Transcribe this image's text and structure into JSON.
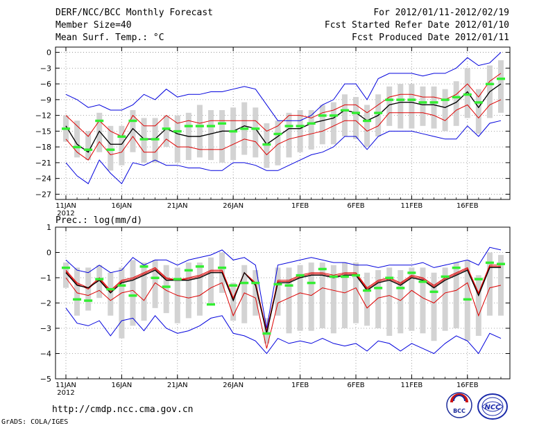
{
  "header": {
    "title": "DERF/NCC/BCC Monthly Forecast",
    "member_size": "Member Size=40",
    "variable": "Mean Surf. Temp.: °C",
    "period": "For 2012/01/11-2012/02/19",
    "fcst_started": "Fcst Started Refer Date 2012/01/10",
    "fcst_produced": "Fcst Produced Date 2012/01/11"
  },
  "footer": {
    "url": "http://cmdp.ncc.cma.gov.cn",
    "grads_credit": "GrADS: COLA/IGES",
    "logo_bcc_text": "BCC",
    "logo_ncc_text": "NCC"
  },
  "colors": {
    "envelope": "#0000dd",
    "spread": "#dd0000",
    "mean": "#000000",
    "bar": "#d3d3d3",
    "marker": "#33ee33"
  },
  "chart_data": [
    {
      "type": "line",
      "name": "temperature",
      "title": "Mean Surf. Temp.: °C",
      "ylim": [
        -28,
        1
      ],
      "yticks": [
        0,
        -3,
        -6,
        -9,
        -12,
        -15,
        -18,
        -21,
        -24,
        -27
      ],
      "x_ticks": [
        {
          "day": 0,
          "label": "11JAN"
        },
        {
          "day": 5,
          "label": "16JAN"
        },
        {
          "day": 10,
          "label": "21JAN"
        },
        {
          "day": 15,
          "label": "26JAN"
        },
        {
          "day": 21,
          "label": "1FEB"
        },
        {
          "day": 26,
          "label": "6FEB"
        },
        {
          "day": 31,
          "label": "11FEB"
        },
        {
          "day": 36,
          "label": "16FEB"
        }
      ],
      "year_label": "2012",
      "days": 40,
      "series": [
        {
          "name": "max",
          "values": [
            -8,
            -9,
            -10.5,
            -10,
            -11,
            -11,
            -10,
            -8,
            -9,
            -7,
            -8.5,
            -8,
            -8,
            -7.5,
            -7.5,
            -7,
            -6.5,
            -7,
            -10,
            -13,
            -13,
            -13,
            -12,
            -10,
            -9,
            -6,
            -6,
            -9,
            -5,
            -4,
            -4,
            -4,
            -4.5,
            -4,
            -4,
            -3,
            -1,
            -2.5,
            -2,
            0
          ]
        },
        {
          "name": "upper",
          "values": [
            -12,
            -14,
            -16,
            -13,
            -15,
            -16,
            -12,
            -14,
            -14,
            -12,
            -13.5,
            -13,
            -13.5,
            -13,
            -13,
            -13,
            -13,
            -13,
            -15,
            -14,
            -12,
            -12,
            -12.5,
            -11.5,
            -11,
            -10,
            -10,
            -11.5,
            -10,
            -8.5,
            -8,
            -8,
            -8.5,
            -8.5,
            -9,
            -8,
            -6,
            -8.5,
            -5.5,
            -4
          ]
        },
        {
          "name": "mean",
          "values": [
            -14,
            -17.5,
            -19,
            -15,
            -17.5,
            -17.5,
            -14.5,
            -16.5,
            -16.5,
            -14.5,
            -15.5,
            -16,
            -16,
            -15.5,
            -15,
            -15,
            -14,
            -14.5,
            -17.5,
            -16,
            -14.5,
            -14.5,
            -13.5,
            -13,
            -12.5,
            -11,
            -11.5,
            -13,
            -12,
            -10,
            -9.5,
            -9.5,
            -10,
            -10,
            -10.5,
            -9.5,
            -7.5,
            -10.5,
            -7.5,
            -6
          ]
        },
        {
          "name": "lower",
          "values": [
            -16.5,
            -19,
            -20.5,
            -17,
            -19.5,
            -19,
            -16,
            -19,
            -19,
            -16.5,
            -18,
            -18,
            -18.5,
            -18.5,
            -18.5,
            -17.5,
            -16.5,
            -17,
            -19.5,
            -17.5,
            -16.5,
            -16,
            -15.5,
            -15,
            -14,
            -13,
            -13,
            -15,
            -14,
            -11.5,
            -11.5,
            -11.5,
            -11.5,
            -12,
            -13,
            -11,
            -10,
            -12.5,
            -10,
            -9
          ]
        },
        {
          "name": "min",
          "values": [
            -21,
            -23.5,
            -25,
            -20.5,
            -23,
            -25,
            -21,
            -21.5,
            -20.5,
            -21.5,
            -21.5,
            -22,
            -22,
            -22.5,
            -22.5,
            -21,
            -21,
            -21.5,
            -22.5,
            -22.5,
            -21.5,
            -20.5,
            -19.5,
            -19,
            -18,
            -16,
            -16,
            -18.5,
            -16,
            -15,
            -15,
            -15,
            -15.5,
            -16,
            -16.5,
            -16.5,
            -14,
            -16,
            -13.5,
            -13
          ]
        }
      ],
      "bars": {
        "bottom": [
          -17,
          -20,
          -20.5,
          -19,
          -22.5,
          -21.5,
          -19,
          -21,
          -21,
          -18,
          -21,
          -20.5,
          -20,
          -20.5,
          -21,
          -20.5,
          -19.5,
          -20,
          -22,
          -21.5,
          -20,
          -19,
          -18.5,
          -17.5,
          -17.5,
          -16,
          -16.5,
          -18,
          -16,
          -14,
          -14.5,
          -14.5,
          -14,
          -14.5,
          -15,
          -14,
          -12.5,
          -15.5,
          -12.5,
          -11.5
        ],
        "top": [
          -12,
          -13,
          -15,
          -11.5,
          -14,
          -14,
          -11,
          -12.5,
          -12.5,
          -12,
          -12,
          -11.5,
          -10,
          -11,
          -11,
          -10.5,
          -9.5,
          -10.5,
          -13.5,
          -13,
          -11.5,
          -11,
          -11,
          -10,
          -9.5,
          -8,
          -8.5,
          -10,
          -8,
          -6.5,
          -6,
          -6,
          -6.5,
          -6.5,
          -7,
          -5.5,
          -3,
          -7,
          -2.5,
          -1.5
        ]
      },
      "markers": [
        -14.5,
        -18,
        -18.5,
        -13,
        -18.5,
        -16,
        -13,
        -16.5,
        -16.5,
        -14.5,
        -15,
        -14,
        -14,
        -14,
        -13.5,
        -15,
        -14.5,
        -14.5,
        -17.5,
        -15.5,
        -14,
        -14,
        -13.5,
        -12,
        -12,
        -11,
        -11.5,
        -13,
        -11.5,
        -9,
        -9,
        -9,
        -9.5,
        -9.5,
        -9,
        -8.5,
        -8,
        -9.5,
        -6,
        -5
      ]
    },
    {
      "type": "line",
      "name": "precipitation",
      "title": "Prec.: log(mm/d)",
      "ylim": [
        -5,
        1
      ],
      "yticks": [
        1,
        0,
        -1,
        -2,
        -3,
        -4,
        -5
      ],
      "x_ticks": [
        {
          "day": 0,
          "label": "11JAN"
        },
        {
          "day": 5,
          "label": "16JAN"
        },
        {
          "day": 10,
          "label": "21JAN"
        },
        {
          "day": 15,
          "label": "26JAN"
        },
        {
          "day": 21,
          "label": "1FEB"
        },
        {
          "day": 26,
          "label": "6FEB"
        },
        {
          "day": 31,
          "label": "11FEB"
        },
        {
          "day": 36,
          "label": "16FEB"
        }
      ],
      "year_label": "2012",
      "days": 40,
      "series": [
        {
          "name": "max",
          "values": [
            -0.3,
            -0.7,
            -0.8,
            -0.5,
            -0.8,
            -0.7,
            -0.2,
            -0.5,
            -0.3,
            -0.3,
            -0.5,
            -0.3,
            -0.2,
            -0.1,
            0.1,
            -0.3,
            -0.2,
            -0.5,
            -3.0,
            -0.5,
            -0.4,
            -0.3,
            -0.2,
            -0.3,
            -0.4,
            -0.4,
            -0.5,
            -0.5,
            -0.6,
            -0.5,
            -0.5,
            -0.5,
            -0.4,
            -0.6,
            -0.5,
            -0.4,
            -0.3,
            -0.5,
            0.2,
            0.1
          ]
        },
        {
          "name": "upper",
          "values": [
            -0.7,
            -1.2,
            -1.4,
            -1.0,
            -1.5,
            -1.1,
            -1.0,
            -0.8,
            -0.6,
            -1.0,
            -1.1,
            -1.0,
            -0.9,
            -0.7,
            -0.7,
            -1.8,
            -0.8,
            -1.2,
            -3.1,
            -1.1,
            -1.1,
            -0.9,
            -0.8,
            -0.8,
            -0.9,
            -0.8,
            -0.8,
            -1.4,
            -1.1,
            -1.0,
            -1.2,
            -0.9,
            -1.0,
            -1.3,
            -1.0,
            -0.8,
            -0.6,
            -1.6,
            -0.5,
            -0.5
          ]
        },
        {
          "name": "mean",
          "values": [
            -0.8,
            -1.3,
            -1.4,
            -1.1,
            -1.6,
            -1.2,
            -1.1,
            -0.9,
            -0.7,
            -1.1,
            -1.1,
            -1.1,
            -1.0,
            -0.8,
            -0.8,
            -1.9,
            -0.8,
            -1.3,
            -3.2,
            -1.2,
            -1.2,
            -1.0,
            -0.9,
            -0.9,
            -1.0,
            -0.9,
            -0.9,
            -1.5,
            -1.2,
            -1.1,
            -1.3,
            -1.0,
            -1.1,
            -1.4,
            -1.1,
            -0.9,
            -0.7,
            -1.7,
            -0.6,
            -0.6
          ]
        },
        {
          "name": "lower",
          "values": [
            -1.0,
            -1.6,
            -1.7,
            -1.5,
            -1.9,
            -1.6,
            -1.5,
            -1.9,
            -1.2,
            -1.5,
            -1.7,
            -1.8,
            -1.7,
            -1.4,
            -1.2,
            -2.5,
            -1.6,
            -1.8,
            -3.8,
            -2.0,
            -1.8,
            -1.6,
            -1.7,
            -1.4,
            -1.5,
            -1.6,
            -1.4,
            -2.2,
            -1.8,
            -1.7,
            -1.9,
            -1.5,
            -1.8,
            -2.0,
            -1.6,
            -1.5,
            -1.2,
            -2.5,
            -1.4,
            -1.3
          ]
        },
        {
          "name": "min",
          "values": [
            -2.2,
            -2.8,
            -2.9,
            -2.7,
            -3.3,
            -2.7,
            -2.6,
            -3.1,
            -2.5,
            -3.0,
            -3.2,
            -3.1,
            -2.9,
            -2.6,
            -2.5,
            -3.2,
            -3.3,
            -3.5,
            -4.0,
            -3.4,
            -3.6,
            -3.5,
            -3.6,
            -3.4,
            -3.6,
            -3.7,
            -3.6,
            -3.9,
            -3.5,
            -3.6,
            -3.9,
            -3.6,
            -3.8,
            -4.0,
            -3.6,
            -3.3,
            -3.5,
            -4.0,
            -3.2,
            -3.4
          ]
        },
        {
          "name": "line6",
          "values": [
            -0.75,
            -1.25,
            -1.45,
            -1.05,
            -1.55,
            -1.15,
            -1.05,
            -0.85,
            -0.65,
            -1.05,
            -1.1,
            -1.05,
            -0.95,
            -0.75,
            -0.75,
            -1.85,
            -0.8,
            -1.25,
            -3.15,
            -1.15,
            -1.15,
            -0.95,
            -0.85,
            -0.85,
            -0.95,
            -0.85,
            -0.85,
            -1.45,
            -1.15,
            -1.05,
            -1.25,
            -0.95,
            -1.05,
            -1.35,
            -1.05,
            -0.85,
            -0.65,
            -1.65,
            -0.55,
            -0.55
          ]
        }
      ],
      "bars": {
        "bottom": [
          -1.4,
          -2.5,
          -2.3,
          -1.8,
          -2.5,
          -3.4,
          -2.9,
          -2.7,
          -2.2,
          -2.4,
          -2.8,
          -2.6,
          -2.5,
          -2.0,
          -1.6,
          -2.7,
          -2.8,
          -2.5,
          -3.6,
          -2.5,
          -3.2,
          -3.1,
          -3.1,
          -3.0,
          -3.2,
          -3.0,
          -2.8,
          -2.9,
          -3.0,
          -3.3,
          -3.2,
          -3.1,
          -3.2,
          -3.5,
          -3.1,
          -3.0,
          -3.5,
          -3.3,
          -2.5,
          -2.5
        ],
        "top": [
          -0.4,
          -0.6,
          -0.6,
          -0.5,
          -0.8,
          -0.6,
          -0.3,
          -0.4,
          -0.3,
          -0.5,
          -0.6,
          -0.4,
          -0.4,
          -0.2,
          0.0,
          -1.2,
          -0.5,
          -0.7,
          -2.6,
          -0.6,
          -0.6,
          -0.5,
          -0.4,
          -0.4,
          -0.5,
          -0.4,
          -0.4,
          -0.8,
          -0.7,
          -0.6,
          -0.7,
          -0.6,
          -0.6,
          -0.8,
          -0.6,
          -0.4,
          -0.3,
          -0.9,
          0.0,
          -0.1
        ]
      },
      "markers": [
        -0.6,
        -1.85,
        -1.9,
        -1.05,
        -1.45,
        -1.3,
        -1.7,
        -0.55,
        -1.0,
        -1.35,
        -1.05,
        -0.7,
        -0.55,
        -2.05,
        -0.6,
        -1.3,
        -1.2,
        -1.2,
        -3.2,
        -1.25,
        -1.3,
        -0.9,
        -1.2,
        -0.65,
        -0.95,
        -0.95,
        -0.9,
        -1.5,
        -1.4,
        -1.0,
        -1.4,
        -0.8,
        -1.15,
        -1.55,
        -0.95,
        -0.6,
        -1.85,
        -1.05,
        -0.4,
        -0.45
      ]
    }
  ]
}
